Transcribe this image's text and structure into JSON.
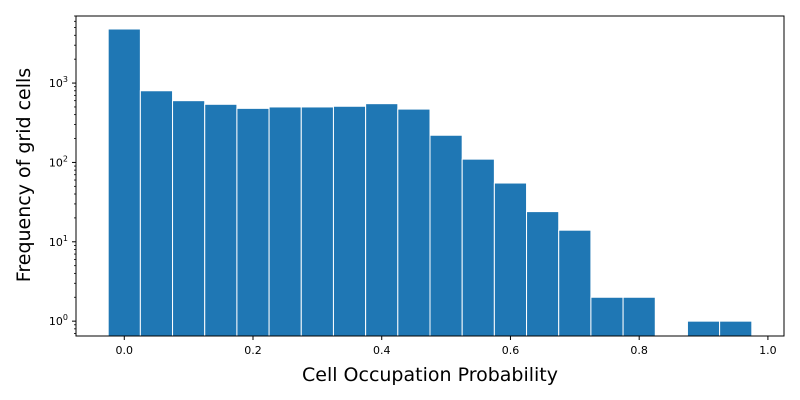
{
  "chart_data": {
    "type": "bar",
    "title": "",
    "xlabel": "Cell Occupation Probability",
    "ylabel": "Frequency of grid cells",
    "yscale": "log",
    "xlim": [
      -0.075,
      1.025
    ],
    "ylim": [
      0.65,
      7000
    ],
    "bin_width": 0.05,
    "x": [
      0.0,
      0.05,
      0.1,
      0.15,
      0.2,
      0.25,
      0.3,
      0.35,
      0.4,
      0.45,
      0.5,
      0.55,
      0.6,
      0.65,
      0.7,
      0.75,
      0.8,
      0.85,
      0.9,
      0.95
    ],
    "values": [
      4800,
      800,
      600,
      540,
      480,
      500,
      500,
      510,
      550,
      470,
      220,
      110,
      55,
      24,
      14,
      2,
      2,
      0,
      1,
      1
    ],
    "xticks": [
      0.0,
      0.2,
      0.4,
      0.6,
      0.8,
      1.0
    ],
    "xtick_labels": [
      "0.0",
      "0.2",
      "0.4",
      "0.6",
      "0.8",
      "1.0"
    ],
    "yticks": [
      1,
      10,
      100,
      1000
    ],
    "ytick_labels": [
      {
        "base": "10",
        "exp": "0"
      },
      {
        "base": "10",
        "exp": "1"
      },
      {
        "base": "10",
        "exp": "2"
      },
      {
        "base": "10",
        "exp": "3"
      }
    ],
    "bar_color": "#1f77b4",
    "grid": false,
    "legend": "none"
  }
}
